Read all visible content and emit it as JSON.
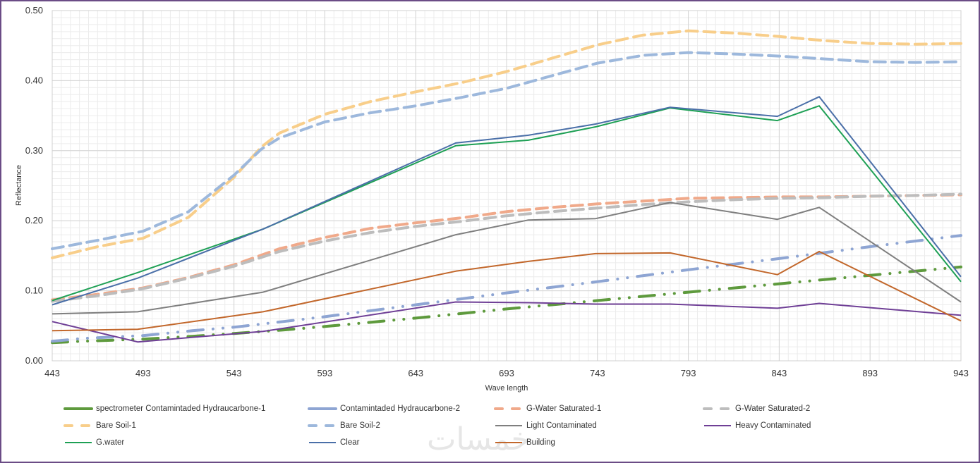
{
  "chart_data": {
    "type": "line",
    "title": "",
    "xlabel": "Wave length",
    "ylabel": "Reflectance",
    "xlim": [
      443,
      943
    ],
    "ylim": [
      0,
      0.5
    ],
    "x_ticks": [
      "443",
      "493",
      "543",
      "593",
      "643",
      "693",
      "743",
      "793",
      "843",
      "893",
      "943"
    ],
    "y_ticks": [
      "0.00",
      "0.10",
      "0.20",
      "0.30",
      "0.40",
      "0.50"
    ],
    "grid": true,
    "legend_position": "bottom",
    "series": [
      {
        "name": "spectrometer Contamintaded Hydraucarbone-1",
        "color": "#5e9a3d",
        "style": "dashdot",
        "x": [
          443,
          460,
          493,
          520,
          543,
          570,
          593,
          643,
          693,
          743,
          793,
          843,
          893,
          943
        ],
        "y": [
          0.026,
          0.028,
          0.031,
          0.035,
          0.039,
          0.044,
          0.049,
          0.061,
          0.074,
          0.086,
          0.098,
          0.11,
          0.122,
          0.134
        ]
      },
      {
        "name": "Contamintaded Hydraucarbone-2",
        "color": "#8ea5d3",
        "style": "dashdot",
        "x": [
          443,
          460,
          493,
          520,
          543,
          570,
          593,
          643,
          693,
          743,
          793,
          843,
          893,
          943
        ],
        "y": [
          0.028,
          0.032,
          0.036,
          0.043,
          0.048,
          0.056,
          0.063,
          0.08,
          0.097,
          0.113,
          0.13,
          0.146,
          0.163,
          0.179
        ]
      },
      {
        "name": "G-Water Saturated-1",
        "color": "#f0a98a",
        "style": "dash",
        "x": [
          443,
          468,
          493,
          518,
          543,
          568,
          593,
          618,
          643,
          668,
          693,
          718,
          743,
          768,
          793,
          818,
          843,
          868,
          893,
          918,
          943
        ],
        "y": [
          0.087,
          0.095,
          0.104,
          0.119,
          0.137,
          0.16,
          0.176,
          0.189,
          0.197,
          0.204,
          0.213,
          0.219,
          0.224,
          0.228,
          0.232,
          0.233,
          0.234,
          0.234,
          0.235,
          0.236,
          0.237
        ]
      },
      {
        "name": "G-Water Saturated-2",
        "color": "#bdbdbd",
        "style": "dash",
        "x": [
          443,
          468,
          493,
          518,
          543,
          568,
          593,
          618,
          643,
          668,
          693,
          718,
          743,
          768,
          793,
          818,
          843,
          868,
          893,
          918,
          943
        ],
        "y": [
          0.085,
          0.093,
          0.103,
          0.118,
          0.135,
          0.156,
          0.171,
          0.183,
          0.192,
          0.199,
          0.207,
          0.213,
          0.218,
          0.223,
          0.227,
          0.23,
          0.232,
          0.233,
          0.235,
          0.236,
          0.238
        ]
      },
      {
        "name": "Bare Soil-1",
        "color": "#f8ce8a",
        "style": "dash",
        "x": [
          443,
          468,
          493,
          518,
          543,
          558,
          568,
          593,
          618,
          643,
          668,
          693,
          718,
          743,
          768,
          793,
          818,
          843,
          868,
          893,
          918,
          943
        ],
        "y": [
          0.147,
          0.163,
          0.175,
          0.205,
          0.262,
          0.305,
          0.325,
          0.352,
          0.37,
          0.384,
          0.397,
          0.413,
          0.432,
          0.451,
          0.465,
          0.471,
          0.468,
          0.463,
          0.457,
          0.453,
          0.452,
          0.453
        ]
      },
      {
        "name": "Bare Soil-2",
        "color": "#9db8dc",
        "style": "dash",
        "x": [
          443,
          468,
          493,
          518,
          543,
          558,
          568,
          593,
          618,
          643,
          668,
          693,
          718,
          743,
          768,
          793,
          818,
          843,
          868,
          893,
          918,
          943
        ],
        "y": [
          0.16,
          0.172,
          0.185,
          0.213,
          0.265,
          0.302,
          0.318,
          0.341,
          0.354,
          0.364,
          0.376,
          0.389,
          0.407,
          0.425,
          0.436,
          0.44,
          0.438,
          0.435,
          0.431,
          0.427,
          0.426,
          0.427
        ]
      },
      {
        "name": "Light Contaminated",
        "color": "#7f7f7f",
        "style": "solid",
        "x": [
          443,
          490,
          559,
          665,
          705,
          742,
          783,
          842,
          865,
          943
        ],
        "y": [
          0.067,
          0.07,
          0.098,
          0.18,
          0.201,
          0.203,
          0.226,
          0.202,
          0.219,
          0.084
        ]
      },
      {
        "name": "Heavy Contaminated",
        "color": "#6f3f96",
        "style": "solid",
        "x": [
          443,
          490,
          559,
          665,
          705,
          742,
          783,
          842,
          865,
          943
        ],
        "y": [
          0.056,
          0.027,
          0.042,
          0.084,
          0.083,
          0.081,
          0.081,
          0.075,
          0.082,
          0.065
        ]
      },
      {
        "name": "G.water",
        "color": "#1ea055",
        "style": "solid",
        "x": [
          443,
          490,
          559,
          665,
          705,
          742,
          783,
          842,
          865,
          943
        ],
        "y": [
          0.086,
          0.126,
          0.188,
          0.307,
          0.315,
          0.334,
          0.361,
          0.343,
          0.364,
          0.113
        ]
      },
      {
        "name": "Clear",
        "color": "#4a6fa8",
        "style": "solid",
        "x": [
          443,
          490,
          559,
          665,
          705,
          742,
          783,
          842,
          865,
          943
        ],
        "y": [
          0.08,
          0.118,
          0.188,
          0.311,
          0.322,
          0.338,
          0.362,
          0.349,
          0.377,
          0.12
        ]
      },
      {
        "name": "Building",
        "color": "#c2672b",
        "style": "solid",
        "x": [
          443,
          490,
          559,
          665,
          705,
          742,
          783,
          842,
          865,
          943
        ],
        "y": [
          0.043,
          0.045,
          0.07,
          0.128,
          0.142,
          0.153,
          0.154,
          0.123,
          0.156,
          0.057
        ]
      }
    ]
  },
  "watermark": "خمسات"
}
